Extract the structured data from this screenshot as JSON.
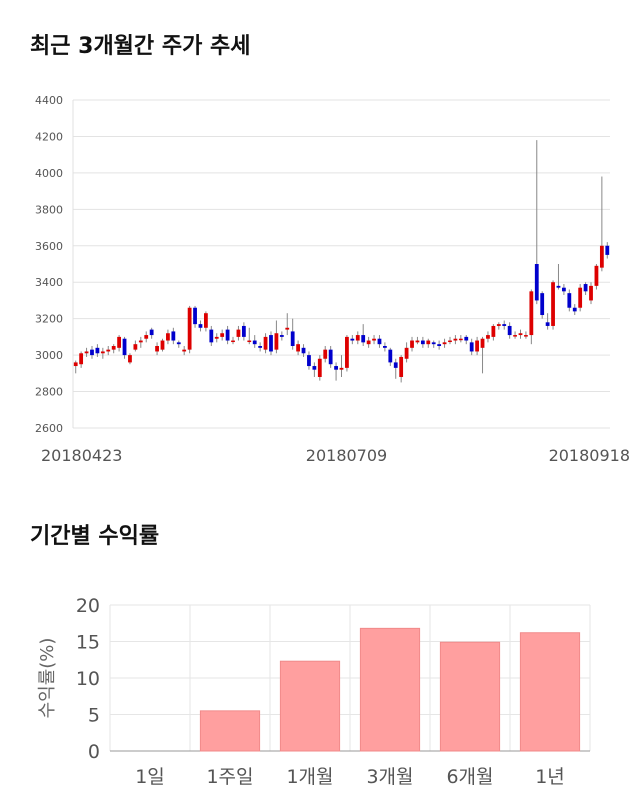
{
  "sections": {
    "price_title": "최근 3개월간 주가 추세",
    "return_title": "기간별 수익률"
  },
  "chart_data": [
    {
      "type": "candlestick",
      "title": "최근 3개월간 주가 추세",
      "ylim": [
        2600,
        4400
      ],
      "yticks": [
        2600,
        2800,
        3000,
        3200,
        3400,
        3600,
        3800,
        4000,
        4200,
        4400
      ],
      "xtick_labels": [
        "20180423",
        "20180709",
        "20180918"
      ],
      "grid": true,
      "colors": {
        "up": "#dd0000",
        "down": "#0000cc",
        "wick": "#888888"
      },
      "candles": [
        [
          2940,
          2960,
          2900,
          2970
        ],
        [
          2950,
          3010,
          2930,
          3020
        ],
        [
          3010,
          3020,
          2990,
          3040
        ],
        [
          3030,
          3000,
          2980,
          3050
        ],
        [
          3040,
          3010,
          2990,
          3060
        ],
        [
          3010,
          3020,
          2980,
          3040
        ],
        [
          3020,
          3030,
          3000,
          3050
        ],
        [
          3030,
          3050,
          3010,
          3060
        ],
        [
          3040,
          3100,
          3020,
          3110
        ],
        [
          3090,
          3000,
          2980,
          3100
        ],
        [
          2960,
          3000,
          2950,
          3010
        ],
        [
          3030,
          3060,
          3020,
          3080
        ],
        [
          3070,
          3080,
          3040,
          3100
        ],
        [
          3090,
          3110,
          3070,
          3130
        ],
        [
          3140,
          3110,
          3090,
          3150
        ],
        [
          3020,
          3050,
          3000,
          3070
        ],
        [
          3030,
          3080,
          3020,
          3090
        ],
        [
          3080,
          3120,
          3060,
          3140
        ],
        [
          3130,
          3080,
          3060,
          3150
        ],
        [
          3070,
          3060,
          3040,
          3080
        ],
        [
          3020,
          3030,
          3000,
          3050
        ],
        [
          3030,
          3260,
          3010,
          3270
        ],
        [
          3260,
          3170,
          3150,
          3270
        ],
        [
          3170,
          3150,
          3130,
          3190
        ],
        [
          3150,
          3230,
          3130,
          3240
        ],
        [
          3140,
          3070,
          3050,
          3160
        ],
        [
          3090,
          3100,
          3070,
          3120
        ],
        [
          3100,
          3120,
          3080,
          3140
        ],
        [
          3140,
          3080,
          3060,
          3160
        ],
        [
          3080,
          3080,
          3060,
          3100
        ],
        [
          3100,
          3140,
          3080,
          3160
        ],
        [
          3160,
          3100,
          3080,
          3180
        ],
        [
          3080,
          3080,
          3060,
          3150
        ],
        [
          3080,
          3060,
          3040,
          3110
        ],
        [
          3050,
          3040,
          3020,
          3070
        ],
        [
          3030,
          3100,
          3010,
          3120
        ],
        [
          3110,
          3020,
          3000,
          3130
        ],
        [
          3030,
          3120,
          3010,
          3190
        ],
        [
          3110,
          3100,
          3080,
          3130
        ],
        [
          3140,
          3150,
          3110,
          3230
        ],
        [
          3130,
          3050,
          3030,
          3200
        ],
        [
          3020,
          3060,
          3000,
          3080
        ],
        [
          3040,
          3010,
          2990,
          3060
        ],
        [
          3000,
          2940,
          2920,
          3020
        ],
        [
          2940,
          2920,
          2880,
          2960
        ],
        [
          2880,
          2980,
          2860,
          3000
        ],
        [
          2980,
          3030,
          2960,
          3050
        ],
        [
          3030,
          2950,
          2930,
          3050
        ],
        [
          2940,
          2920,
          2860,
          2960
        ],
        [
          2920,
          2930,
          2880,
          3000
        ],
        [
          2930,
          3100,
          2910,
          3110
        ],
        [
          3090,
          3080,
          3060,
          3110
        ],
        [
          3080,
          3110,
          3060,
          3130
        ],
        [
          3110,
          3070,
          3050,
          3170
        ],
        [
          3060,
          3080,
          3040,
          3100
        ],
        [
          3080,
          3090,
          3060,
          3110
        ],
        [
          3090,
          3060,
          3040,
          3110
        ],
        [
          3050,
          3040,
          3020,
          3070
        ],
        [
          3030,
          2960,
          2940,
          3040
        ],
        [
          2960,
          2930,
          2870,
          2980
        ],
        [
          2880,
          2990,
          2850,
          3000
        ],
        [
          2980,
          3040,
          2960,
          3070
        ],
        [
          3040,
          3080,
          3020,
          3100
        ],
        [
          3070,
          3080,
          3060,
          3100
        ],
        [
          3080,
          3060,
          3040,
          3100
        ],
        [
          3060,
          3080,
          3040,
          3090
        ],
        [
          3070,
          3060,
          3040,
          3080
        ],
        [
          3060,
          3050,
          3030,
          3080
        ],
        [
          3060,
          3070,
          3040,
          3090
        ],
        [
          3080,
          3080,
          3060,
          3100
        ],
        [
          3080,
          3090,
          3060,
          3110
        ],
        [
          3090,
          3090,
          3070,
          3110
        ],
        [
          3100,
          3080,
          3060,
          3110
        ],
        [
          3070,
          3020,
          3000,
          3090
        ],
        [
          3020,
          3080,
          3000,
          3100
        ],
        [
          3040,
          3090,
          2900,
          3100
        ],
        [
          3090,
          3110,
          3070,
          3130
        ],
        [
          3100,
          3160,
          3080,
          3170
        ],
        [
          3160,
          3170,
          3140,
          3180
        ],
        [
          3170,
          3160,
          3140,
          3190
        ],
        [
          3160,
          3110,
          3090,
          3180
        ],
        [
          3110,
          3110,
          3090,
          3130
        ],
        [
          3110,
          3120,
          3090,
          3140
        ],
        [
          3110,
          3110,
          3090,
          3130
        ],
        [
          3110,
          3350,
          3060,
          3360
        ],
        [
          3500,
          3300,
          3280,
          4180
        ],
        [
          3340,
          3220,
          3200,
          3350
        ],
        [
          3180,
          3160,
          3140,
          3230
        ],
        [
          3160,
          3400,
          3140,
          3410
        ],
        [
          3380,
          3370,
          3360,
          3500
        ],
        [
          3370,
          3350,
          3330,
          3390
        ],
        [
          3340,
          3260,
          3240,
          3360
        ],
        [
          3260,
          3240,
          3220,
          3280
        ],
        [
          3260,
          3370,
          3240,
          3390
        ],
        [
          3390,
          3350,
          3330,
          3400
        ],
        [
          3300,
          3380,
          3280,
          3400
        ],
        [
          3380,
          3490,
          3360,
          3500
        ],
        [
          3480,
          3600,
          3460,
          3980
        ],
        [
          3600,
          3550,
          3530,
          3620
        ]
      ]
    },
    {
      "type": "bar",
      "title": "기간별 수익률",
      "ylabel": "수익률(%)",
      "categories": [
        "1일",
        "1주일",
        "1개월",
        "3개월",
        "6개월",
        "1년"
      ],
      "values": [
        0,
        5.5,
        12.3,
        16.8,
        14.9,
        16.2
      ],
      "ylim": [
        0,
        20
      ],
      "yticks": [
        0,
        5,
        10,
        15,
        20
      ],
      "grid": true,
      "color": "#ff9f9f"
    }
  ]
}
